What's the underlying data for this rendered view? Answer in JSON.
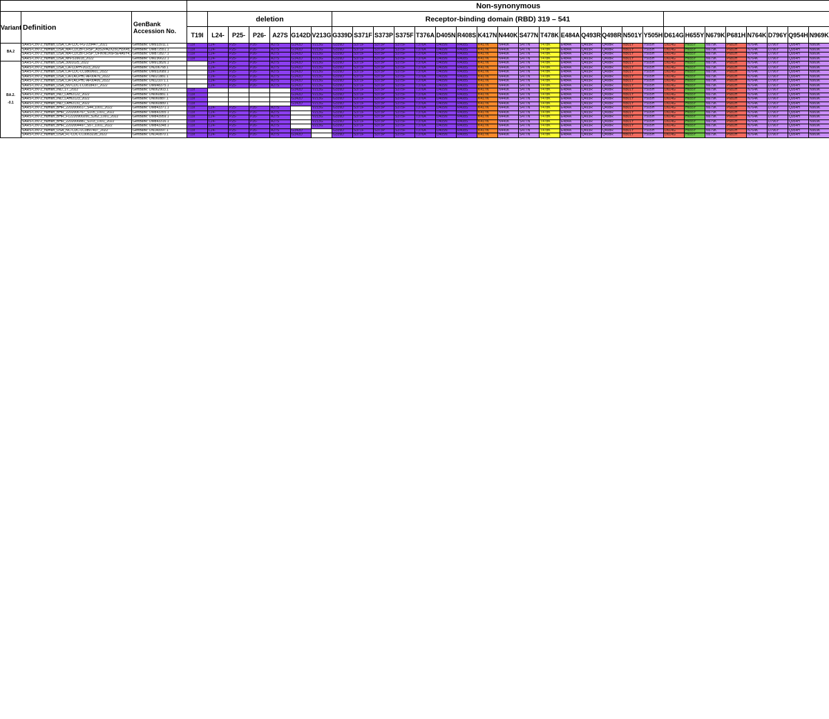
{
  "header": {
    "top": "Non-synonymous",
    "deletion": "deletion",
    "rbd": "Receptor-binding domain (RBD)  319 – 541",
    "variant": "Variant",
    "definition": "Definition",
    "genbank": "GenBank Accession No."
  },
  "columns": [
    "T19I",
    "L24-",
    "P25-",
    "P26-",
    "A27S",
    "G142D",
    "V213G",
    "G339D",
    "S371F",
    "S373P",
    "S375F",
    "T376A",
    "D405N",
    "R408S",
    "K417N",
    "N440K",
    "S477N",
    "T478K",
    "E484A",
    "Q493R",
    "Q498R",
    "N501Y",
    "Y505H",
    "D614G",
    "H655Y",
    "N679K",
    "P681H",
    "N764K",
    "D796Y",
    "Q954H",
    "N969K"
  ],
  "column_colors": [
    "purple",
    "purple",
    "purple",
    "purple",
    "purple",
    "purple",
    "purple",
    "purple",
    "purple",
    "purple",
    "purple",
    "purple",
    "purple",
    "purple",
    "orange",
    "purple-light",
    "purple-light",
    "yellow",
    "purple-light",
    "purple-light",
    "purple-light",
    "red",
    "purple-light",
    "red",
    "green",
    "purple-light",
    "red",
    "purple-light",
    "purple-light",
    "purple-light",
    "purple-light"
  ],
  "variants": [
    {
      "name": "BA.2",
      "rows": 4
    },
    {
      "name": "BA.2.\n-0.1",
      "rows": 17
    }
  ],
  "fill_order": [
    0,
    7,
    8,
    9,
    10,
    11,
    12,
    13,
    14,
    15,
    16,
    17,
    18,
    19,
    20,
    21,
    22,
    23,
    24,
    25,
    26,
    27,
    28,
    29,
    30,
    5,
    6,
    1,
    2,
    3,
    4
  ],
  "rows": [
    {
      "def": "SARS-CoV-2_human_USA_CA-CDC-FG-229447_2021",
      "acc": "GenBank: OM933911.1",
      "missing": []
    },
    {
      "def": "SARS-CoV-2_human_USA_MA-CDCBI-CRSP_A3S2PA2XZ6CH3X45_2021",
      "acc": "GenBank: OM872551.1",
      "missing": []
    },
    {
      "def": "SARS-CoV-2_human_USA_MA-CDCBI-CRSP_UFIKNOX6F5E4A6Y4_2022",
      "acc": "GenBank: OM872827.1",
      "missing": []
    },
    {
      "def": "SARS-CoV-2_human_USA_MN-S16618_2022",
      "acc": "GenBank: OM236622.1",
      "missing": []
    },
    {
      "def": "SARS-CoV-2_human_USA_3001025_2022",
      "acc": "GenBank: OM913826.1",
      "missing": [
        0
      ]
    },
    {
      "def": "SARS-CoV-2_human_USA_CA-CDPH-2023_2022",
      "acc": "GenBank: ON206768.1",
      "missing": [
        0
      ]
    },
    {
      "def": "SARS-CoV-2_human_USA_CA-CDC-LC0869601_2022",
      "acc": "GenBank: OM932689.1",
      "missing": [
        0
      ]
    },
    {
      "def": "SARS-CoV-2_human_USA_CA-LACPHL-AF00476_2022",
      "acc": "GenBank: ON021881.1",
      "missing": [
        0
      ]
    },
    {
      "def": "SARS-CoV-2_human_USA_CA-LACPHL-AF00406_2022",
      "acc": "GenBank: ON121071.1",
      "missing": [
        0
      ]
    },
    {
      "def": "SARS-CoV-2_human_USA_NV-CDC-LC0818437_2022",
      "acc": "GenBank: OM948375.1",
      "missing": [
        0
      ]
    },
    {
      "def": "SARS-CoV-2_human_IND_1T_2022",
      "acc": "GenBank: ON062903.1",
      "missing": [
        1,
        2,
        3,
        4
      ]
    },
    {
      "def": "SARS-CoV-2_human_IND_LAHI2122_2022",
      "acc": "GenBank: ON060881.1",
      "missing": [
        1,
        2,
        3,
        4
      ]
    },
    {
      "def": "SARS-CoV-2_human_IND_LAHI2123_2022",
      "acc": "GenBank: ON060887.1",
      "missing": [
        1,
        2,
        3,
        4
      ]
    },
    {
      "def": "SARS-CoV-2_human_IND_LAHI2131_2022",
      "acc": "GenBank: ON060889.1",
      "missing": [
        1,
        2,
        3,
        4
      ]
    },
    {
      "def": "SARS-CoV-2_human_BHR_2202006617_S44_L001_2022",
      "acc": "GenBank: OM843371.1",
      "missing": [
        5
      ]
    },
    {
      "def": "SARS-CoV-2_human_BHR_2202006767_S105_L001_2022",
      "acc": "GenBank: OM843355.1",
      "missing": [
        5
      ]
    },
    {
      "def": "SARS-CoV-2_human_BHR_F12220900200_S262_L001_2022",
      "acc": "GenBank: OM843959.1",
      "missing": [
        5
      ]
    },
    {
      "def": "SARS-CoV-2_human_BHR_2202006881_S103_L001_2022",
      "acc": "GenBank: OM843316.1",
      "missing": [
        5
      ]
    },
    {
      "def": "SARS-CoV-2_human_BHR_2202004497_S57_L001_2022",
      "acc": "GenBank: OM843348.1",
      "missing": [
        5
      ]
    },
    {
      "def": "SARS-CoV-2_human_USA_NC-CDC-LC0897407_2022",
      "acc": "GenBank: ON140097.1",
      "missing": [
        6
      ]
    },
    {
      "def": "SARS-CoV-2_human_USA_FL-CDC-LC0063228_2022",
      "acc": "GenBank: ON140870.1",
      "missing": [
        6
      ]
    }
  ]
}
